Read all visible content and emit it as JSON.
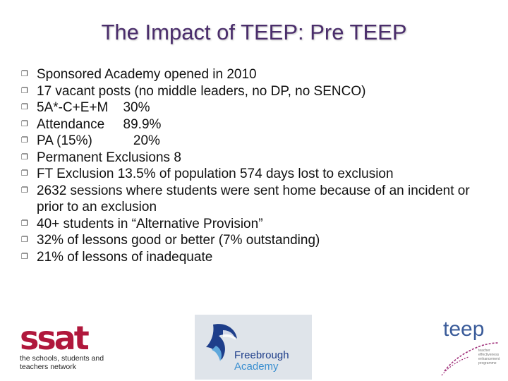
{
  "title": "The Impact of TEEP: Pre TEEP",
  "bullets": [
    {
      "text": "Sponsored Academy opened in 2010"
    },
    {
      "text": "17 vacant posts (no middle leaders, no DP, no SENCO)"
    },
    {
      "text": "5A*-C+E+M    30%"
    },
    {
      "text": "Attendance     89.9%"
    },
    {
      "text": "PA (15%)           20%"
    },
    {
      "text": "Permanent Exclusions 8"
    },
    {
      "text": "FT Exclusion 13.5% of population 574 days lost to exclusion"
    },
    {
      "text": "2632 sessions where students were sent home because of an incident or prior to an exclusion"
    },
    {
      "text": "40+ students in “Alternative Provision”"
    },
    {
      "text": "32% of lessons good or better (7% outstanding)"
    },
    {
      "text": "21% of lessons of inadequate"
    }
  ],
  "logos": {
    "ssat": {
      "word": "ssat",
      "tagline_1": "the schools, students and",
      "tagline_2": "teachers network"
    },
    "freebrough": {
      "line_1": "Freebrough",
      "line_2": "Academy"
    },
    "teep": {
      "word": "teep",
      "small_1": "teacher",
      "small_2": "effectiveness",
      "small_3": "enhancement",
      "small_4": "programme"
    }
  },
  "colors": {
    "title": "#4a2d6b",
    "ssat": "#b0183c",
    "freebrough": "#1e3e8a",
    "teep": "#3b5c9a",
    "teep_swirl": "#a0307a"
  }
}
